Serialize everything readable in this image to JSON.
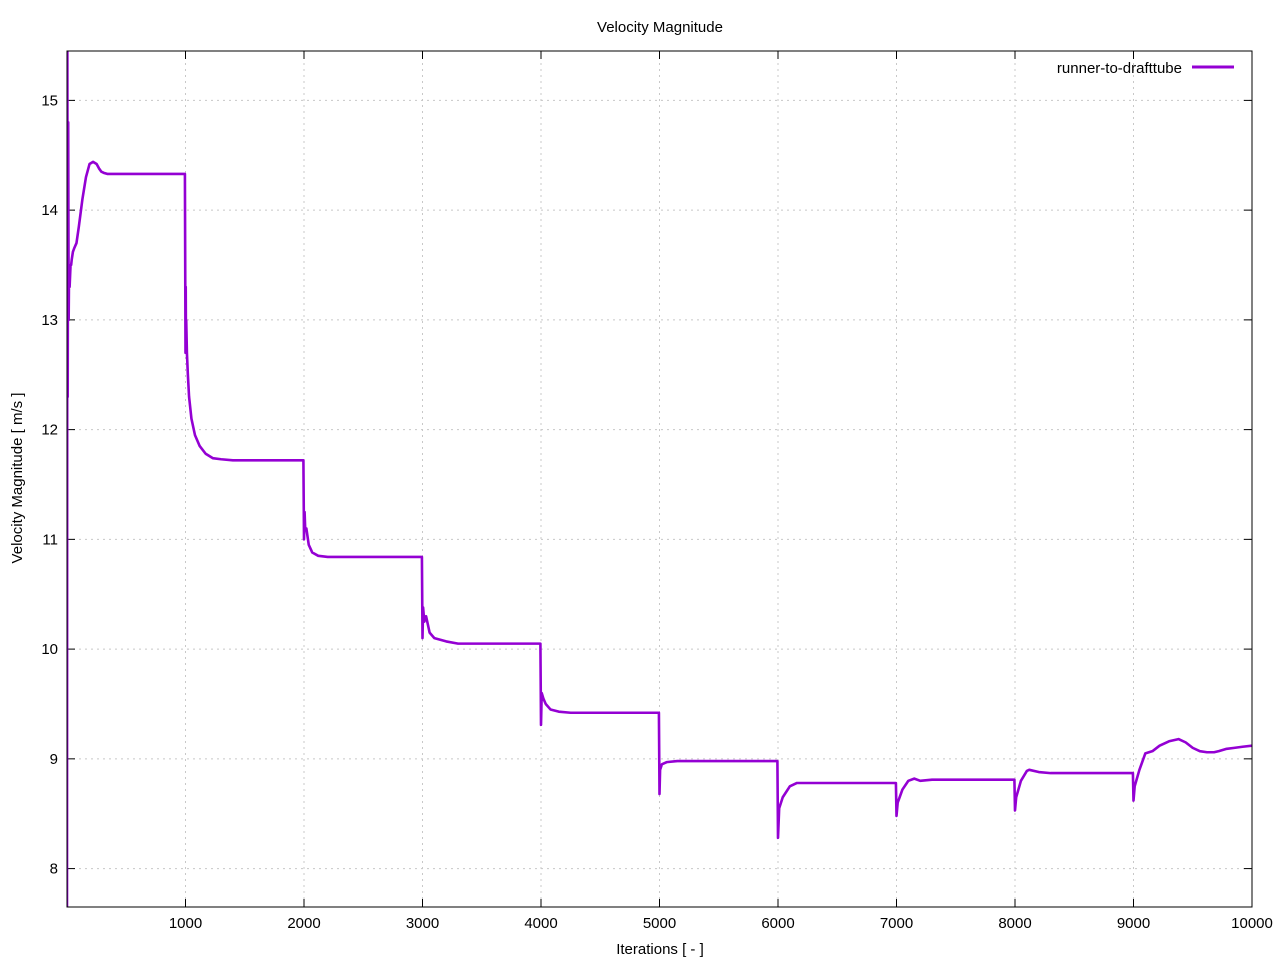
{
  "chart_data": {
    "type": "line",
    "title": "Velocity Magnitude",
    "xlabel": "Iterations [ - ]",
    "ylabel": "Velocity Magnitude [ m/s ]",
    "xlim": [
      0,
      10000
    ],
    "ylim": [
      7.65,
      15.45
    ],
    "xticks": [
      1000,
      2000,
      3000,
      4000,
      5000,
      6000,
      7000,
      8000,
      9000,
      10000
    ],
    "yticks": [
      8,
      9,
      10,
      11,
      12,
      13,
      14,
      15
    ],
    "grid": true,
    "legend_position": "top-right",
    "colors": {
      "series": "#9400d3",
      "axis": "#000000",
      "grid": "#c8c8c8"
    },
    "series": [
      {
        "name": "runner-to-drafttube",
        "x": [
          0,
          3,
          6,
          10,
          14,
          18,
          22,
          26,
          30,
          35,
          40,
          50,
          60,
          80,
          100,
          130,
          160,
          190,
          220,
          250,
          270,
          290,
          310,
          340,
          380,
          420,
          500,
          600,
          700,
          800,
          900,
          995,
          1000,
          1002,
          1004,
          1006,
          1008,
          1012,
          1020,
          1030,
          1050,
          1080,
          1120,
          1170,
          1230,
          1300,
          1400,
          1500,
          1700,
          1900,
          1995,
          2000,
          2005,
          2010,
          2020,
          2040,
          2070,
          2120,
          2200,
          2300,
          2500,
          2800,
          2995,
          3000,
          3005,
          3015,
          3030,
          3060,
          3100,
          3200,
          3300,
          3500,
          3800,
          3995,
          4000,
          4006,
          4020,
          4040,
          4080,
          4150,
          4250,
          4300,
          4600,
          4995,
          5000,
          5005,
          5020,
          5060,
          5150,
          5300,
          5600,
          5995,
          6000,
          6010,
          6040,
          6100,
          6160,
          6300,
          6600,
          6995,
          7000,
          7010,
          7050,
          7100,
          7150,
          7200,
          7300,
          7600,
          7995,
          8000,
          8010,
          8050,
          8100,
          8120,
          8200,
          8300,
          8500,
          8995,
          9000,
          9010,
          9050,
          9100,
          9160,
          9220,
          9300,
          9380,
          9440,
          9500,
          9560,
          9620,
          9680,
          9720,
          9780,
          9850,
          9920,
          10000
        ],
        "values": [
          7.6,
          15.5,
          12.3,
          14.8,
          13.0,
          13.5,
          13.3,
          13.4,
          13.5,
          13.5,
          13.55,
          13.62,
          13.65,
          13.7,
          13.85,
          14.1,
          14.3,
          14.42,
          14.44,
          14.42,
          14.38,
          14.35,
          14.34,
          14.33,
          14.33,
          14.33,
          14.33,
          14.33,
          14.33,
          14.33,
          14.33,
          14.33,
          12.7,
          13.3,
          12.8,
          13.0,
          12.9,
          12.7,
          12.5,
          12.3,
          12.1,
          11.95,
          11.85,
          11.78,
          11.74,
          11.73,
          11.72,
          11.72,
          11.72,
          11.72,
          11.72,
          11.0,
          11.25,
          11.1,
          11.1,
          10.95,
          10.88,
          10.85,
          10.84,
          10.84,
          10.84,
          10.84,
          10.84,
          10.1,
          10.38,
          10.25,
          10.3,
          10.15,
          10.1,
          10.07,
          10.05,
          10.05,
          10.05,
          10.05,
          9.31,
          9.6,
          9.55,
          9.5,
          9.45,
          9.43,
          9.42,
          9.42,
          9.42,
          9.42,
          8.68,
          8.9,
          8.95,
          8.97,
          8.98,
          8.98,
          8.98,
          8.98,
          8.28,
          8.55,
          8.65,
          8.75,
          8.78,
          8.78,
          8.78,
          8.78,
          8.48,
          8.6,
          8.72,
          8.8,
          8.82,
          8.8,
          8.81,
          8.81,
          8.81,
          8.53,
          8.65,
          8.8,
          8.89,
          8.9,
          8.88,
          8.87,
          8.87,
          8.87,
          8.62,
          8.75,
          8.9,
          9.05,
          9.07,
          9.12,
          9.16,
          9.18,
          9.15,
          9.1,
          9.07,
          9.06,
          9.06,
          9.07,
          9.09,
          9.1,
          9.11,
          9.12
        ]
      }
    ]
  }
}
